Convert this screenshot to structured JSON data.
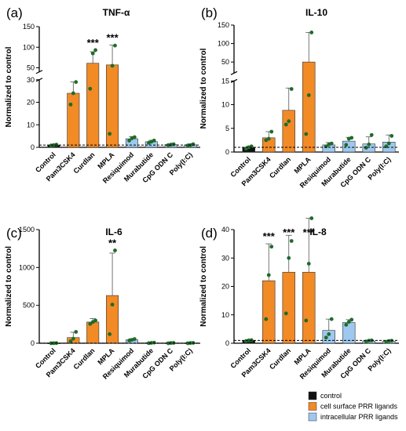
{
  "legend": [
    {
      "label": "control",
      "color": "#111111"
    },
    {
      "label": "cell surface PRR ligands",
      "color": "#f28a26"
    },
    {
      "label": "intracellular PRR ligands",
      "color": "#9ec8ef"
    }
  ],
  "chart_data": [
    {
      "type": "bar",
      "panel": "(a)",
      "title": "TNF-α",
      "ylabel": "Normalized to control",
      "categories": [
        "Control",
        "Pam3CSK4",
        "Curdlan",
        "MPLA",
        "Resiquimod",
        "Murabutide",
        "CpG ODN C",
        "Poly(I:C)"
      ],
      "groups": [
        "control",
        "surface",
        "surface",
        "surface",
        "intra",
        "intra",
        "intra",
        "intra"
      ],
      "values": [
        1,
        24,
        61,
        57,
        3.8,
        2.5,
        1.2,
        1.1
      ],
      "errors": [
        0.3,
        5,
        28,
        48,
        1,
        0.6,
        0.3,
        0.4
      ],
      "points": [
        [
          0.8,
          1,
          1.2
        ],
        [
          19,
          24,
          29
        ],
        [
          26,
          85,
          93
        ],
        [
          6,
          55,
          104
        ],
        [
          3,
          4,
          4.5
        ],
        [
          2,
          2.5,
          3
        ],
        [
          1,
          1.2,
          1.4
        ],
        [
          0.8,
          1,
          1.4
        ]
      ],
      "significance": [
        "",
        "",
        "***",
        "***",
        "",
        "",
        "",
        ""
      ],
      "ylim": [
        0,
        150
      ],
      "broken_axis": {
        "lower": [
          0,
          30
        ],
        "upper": [
          40,
          150
        ]
      },
      "yticks_lower": [
        0,
        10,
        20,
        30
      ],
      "yticks_upper": [
        50,
        100,
        150
      ],
      "baseline": 1
    },
    {
      "type": "bar",
      "panel": "(b)",
      "title": "IL-10",
      "ylabel": "Normalized to control",
      "categories": [
        "Control",
        "Pam3CSK4",
        "Curdlan",
        "MPLA",
        "Resiquimod",
        "Murabutide",
        "CpG ODN C",
        "Poly(I:C)"
      ],
      "groups": [
        "control",
        "surface",
        "surface",
        "surface",
        "intra",
        "intra",
        "intra",
        "intra"
      ],
      "values": [
        1,
        3,
        8.8,
        50,
        1.5,
        2.3,
        1.7,
        2.1
      ],
      "errors": [
        0.2,
        1.3,
        4.7,
        80,
        0.5,
        0.8,
        1.5,
        1.5
      ],
      "points": [
        [
          0.7,
          1,
          1.2
        ],
        [
          2.5,
          2.8,
          4.3
        ],
        [
          5.8,
          6.5,
          13.3
        ],
        [
          3.8,
          12,
          130
        ],
        [
          1.2,
          1.6,
          1.8
        ],
        [
          1.5,
          2.8,
          3.0
        ],
        [
          0.9,
          1.6,
          3.6
        ],
        [
          1.2,
          1.8,
          3.4
        ]
      ],
      "significance": [
        "",
        "",
        "",
        "",
        "",
        "",
        "",
        ""
      ],
      "ylim": [
        0,
        150
      ],
      "broken_axis": {
        "lower": [
          0,
          15
        ],
        "upper": [
          20,
          150
        ]
      },
      "yticks_lower": [
        0,
        5,
        10,
        15
      ],
      "yticks_upper": [
        50,
        100,
        150
      ],
      "baseline": 1
    },
    {
      "type": "bar",
      "panel": "(c)",
      "title": "IL-6",
      "ylabel": "Normalized to control",
      "categories": [
        "Control",
        "Pam3CSK4",
        "Curdlan",
        "MPLA",
        "Resiquimod",
        "Murabutide",
        "CpG ODN C",
        "Poly(I:C)"
      ],
      "groups": [
        "control",
        "surface",
        "surface",
        "surface",
        "intra",
        "intra",
        "intra",
        "intra"
      ],
      "values": [
        1,
        75,
        280,
        630,
        45,
        5,
        3,
        3
      ],
      "errors": [
        1,
        70,
        45,
        560,
        15,
        4,
        3,
        3
      ],
      "points": [
        [
          0,
          1,
          2
        ],
        [
          25,
          60,
          150
        ],
        [
          255,
          280,
          300
        ],
        [
          120,
          510,
          1225
        ],
        [
          35,
          45,
          55
        ],
        [
          1,
          5,
          8
        ],
        [
          0,
          3,
          5
        ],
        [
          0,
          3,
          5
        ]
      ],
      "significance": [
        "",
        "",
        "",
        "**",
        "",
        "",
        "",
        ""
      ],
      "ylim": [
        0,
        1500
      ],
      "yticks": [
        0,
        500,
        1000,
        1500
      ],
      "baseline": 1
    },
    {
      "type": "bar",
      "panel": "(d)",
      "title": "IL-8",
      "ylabel": "Normalized to control",
      "categories": [
        "Control",
        "Pam3CSK4",
        "Curdlan",
        "MPLA",
        "Resiquimod",
        "Murabutide",
        "CpG ODN C",
        "Poly(I:C)"
      ],
      "groups": [
        "control",
        "surface",
        "surface",
        "surface",
        "intra",
        "intra",
        "intra",
        "intra"
      ],
      "values": [
        1,
        22,
        25,
        25,
        4.5,
        7.3,
        0.8,
        0.7
      ],
      "errors": [
        0.2,
        13,
        13,
        19,
        4,
        1,
        0.3,
        0.3
      ],
      "points": [
        [
          0.8,
          1,
          1.1
        ],
        [
          8.5,
          24,
          34
        ],
        [
          10.5,
          30,
          36
        ],
        [
          8,
          28,
          44
        ],
        [
          2,
          3.2,
          8.5
        ],
        [
          6.5,
          7.5,
          8.3
        ],
        [
          0.6,
          0.9,
          1
        ],
        [
          0.5,
          0.8,
          0.9
        ]
      ],
      "significance": [
        "",
        "***",
        "***",
        "***",
        "",
        "",
        "",
        ""
      ],
      "ylim": [
        0,
        40
      ],
      "yticks": [
        0,
        10,
        20,
        30,
        40
      ],
      "baseline": 1
    }
  ]
}
